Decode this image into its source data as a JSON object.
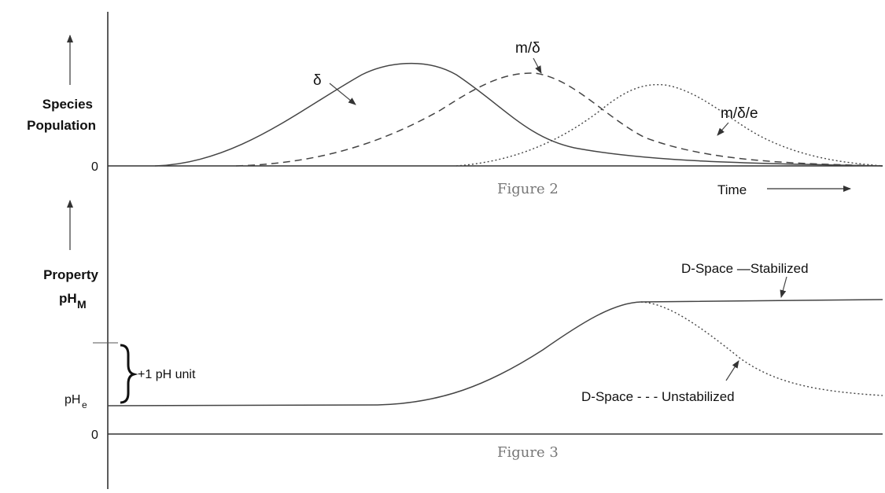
{
  "top_panel": {
    "ylabel_line1": "Species",
    "ylabel_line2": "Population",
    "zero_label": "0",
    "caption": "Figure 2",
    "time_label": "Time",
    "curves": [
      {
        "label": "δ",
        "style": "solid"
      },
      {
        "label": "m/δ",
        "style": "dashed"
      },
      {
        "label": "m/δ/e",
        "style": "dotted"
      }
    ]
  },
  "bottom_panel": {
    "ylabel_line1": "Property",
    "ylabel_main": "pH",
    "ylabel_sub": "M",
    "zero_label": "0",
    "phe_main": "pH",
    "phe_sub": "e",
    "brace_label": "+1 pH unit",
    "caption": "Figure 3",
    "stabilized_label": "D-Space —Stabilized",
    "unstabilized_label": "D-Space - - - Unstabilized"
  },
  "colors": {
    "ink": "#333333",
    "caption": "#777777"
  }
}
